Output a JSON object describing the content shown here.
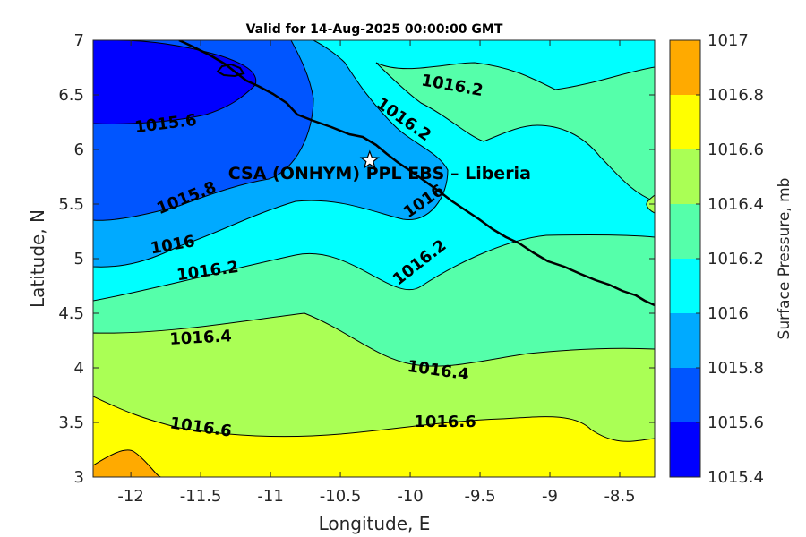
{
  "chart_data": {
    "type": "heatmap",
    "title": "Valid for 14-Aug-2025 00:00:00 GMT",
    "xlabel": "Longitude, E",
    "ylabel": "Latitude, N",
    "xlim": [
      -12.27,
      -8.25
    ],
    "ylim": [
      3,
      7
    ],
    "x_ticks": [
      -12,
      -11.5,
      -11,
      -10.5,
      -10,
      -9.5,
      -9,
      -8.5
    ],
    "x_tick_labels": [
      "-12",
      "-11.5",
      "-11",
      "-10.5",
      "-10",
      "-9.5",
      "-9",
      "-8.5"
    ],
    "y_ticks": [
      3,
      3.5,
      4,
      4.5,
      5,
      5.5,
      6,
      6.5,
      7
    ],
    "y_tick_labels": [
      "3",
      "3.5",
      "4",
      "4.5",
      "5",
      "5.5",
      "6",
      "6.5",
      "7"
    ],
    "colorbar": {
      "label": "Surface Pressure, mb",
      "levels": [
        1015.4,
        1015.6,
        1015.8,
        1016,
        1016.2,
        1016.4,
        1016.6,
        1016.8,
        1017
      ],
      "tick_labels": [
        "1015.4",
        "1015.6",
        "1015.8",
        "1016",
        "1016.2",
        "1016.4",
        "1016.6",
        "1016.8",
        "1017"
      ],
      "colors": [
        "#0000ff",
        "#0055ff",
        "#00aaff",
        "#00ffff",
        "#55ffaa",
        "#aaff55",
        "#ffff00",
        "#ffaa00",
        "#ff5500"
      ]
    },
    "contour_labels": [
      {
        "text": "1015.6",
        "lon": -11.75,
        "lat": 6.23,
        "angle": -7
      },
      {
        "text": "1015.8",
        "lon": -11.6,
        "lat": 5.55,
        "angle": -22
      },
      {
        "text": "1016",
        "lon": -11.7,
        "lat": 5.12,
        "angle": -10
      },
      {
        "text": "1016.2",
        "lon": -11.45,
        "lat": 4.88,
        "angle": -8
      },
      {
        "text": "1016.4",
        "lon": -11.5,
        "lat": 4.27,
        "angle": -3
      },
      {
        "text": "1016.6",
        "lon": -11.5,
        "lat": 3.45,
        "angle": 8
      },
      {
        "text": "1016.2",
        "lon": -9.7,
        "lat": 6.58,
        "angle": 10
      },
      {
        "text": "1016.2",
        "lon": -10.05,
        "lat": 6.27,
        "angle": 35
      },
      {
        "text": "1016",
        "lon": -9.9,
        "lat": 5.52,
        "angle": -35
      },
      {
        "text": "1016.2",
        "lon": -9.93,
        "lat": 4.96,
        "angle": -38
      },
      {
        "text": "1016.4",
        "lon": -9.8,
        "lat": 3.97,
        "angle": 8
      },
      {
        "text": "1016.6",
        "lon": -9.75,
        "lat": 3.5,
        "angle": 0
      }
    ],
    "site": {
      "label": "CSA (ONHYM) PPL EBS  – Liberia",
      "lon": -10.29,
      "lat": 5.9
    }
  }
}
